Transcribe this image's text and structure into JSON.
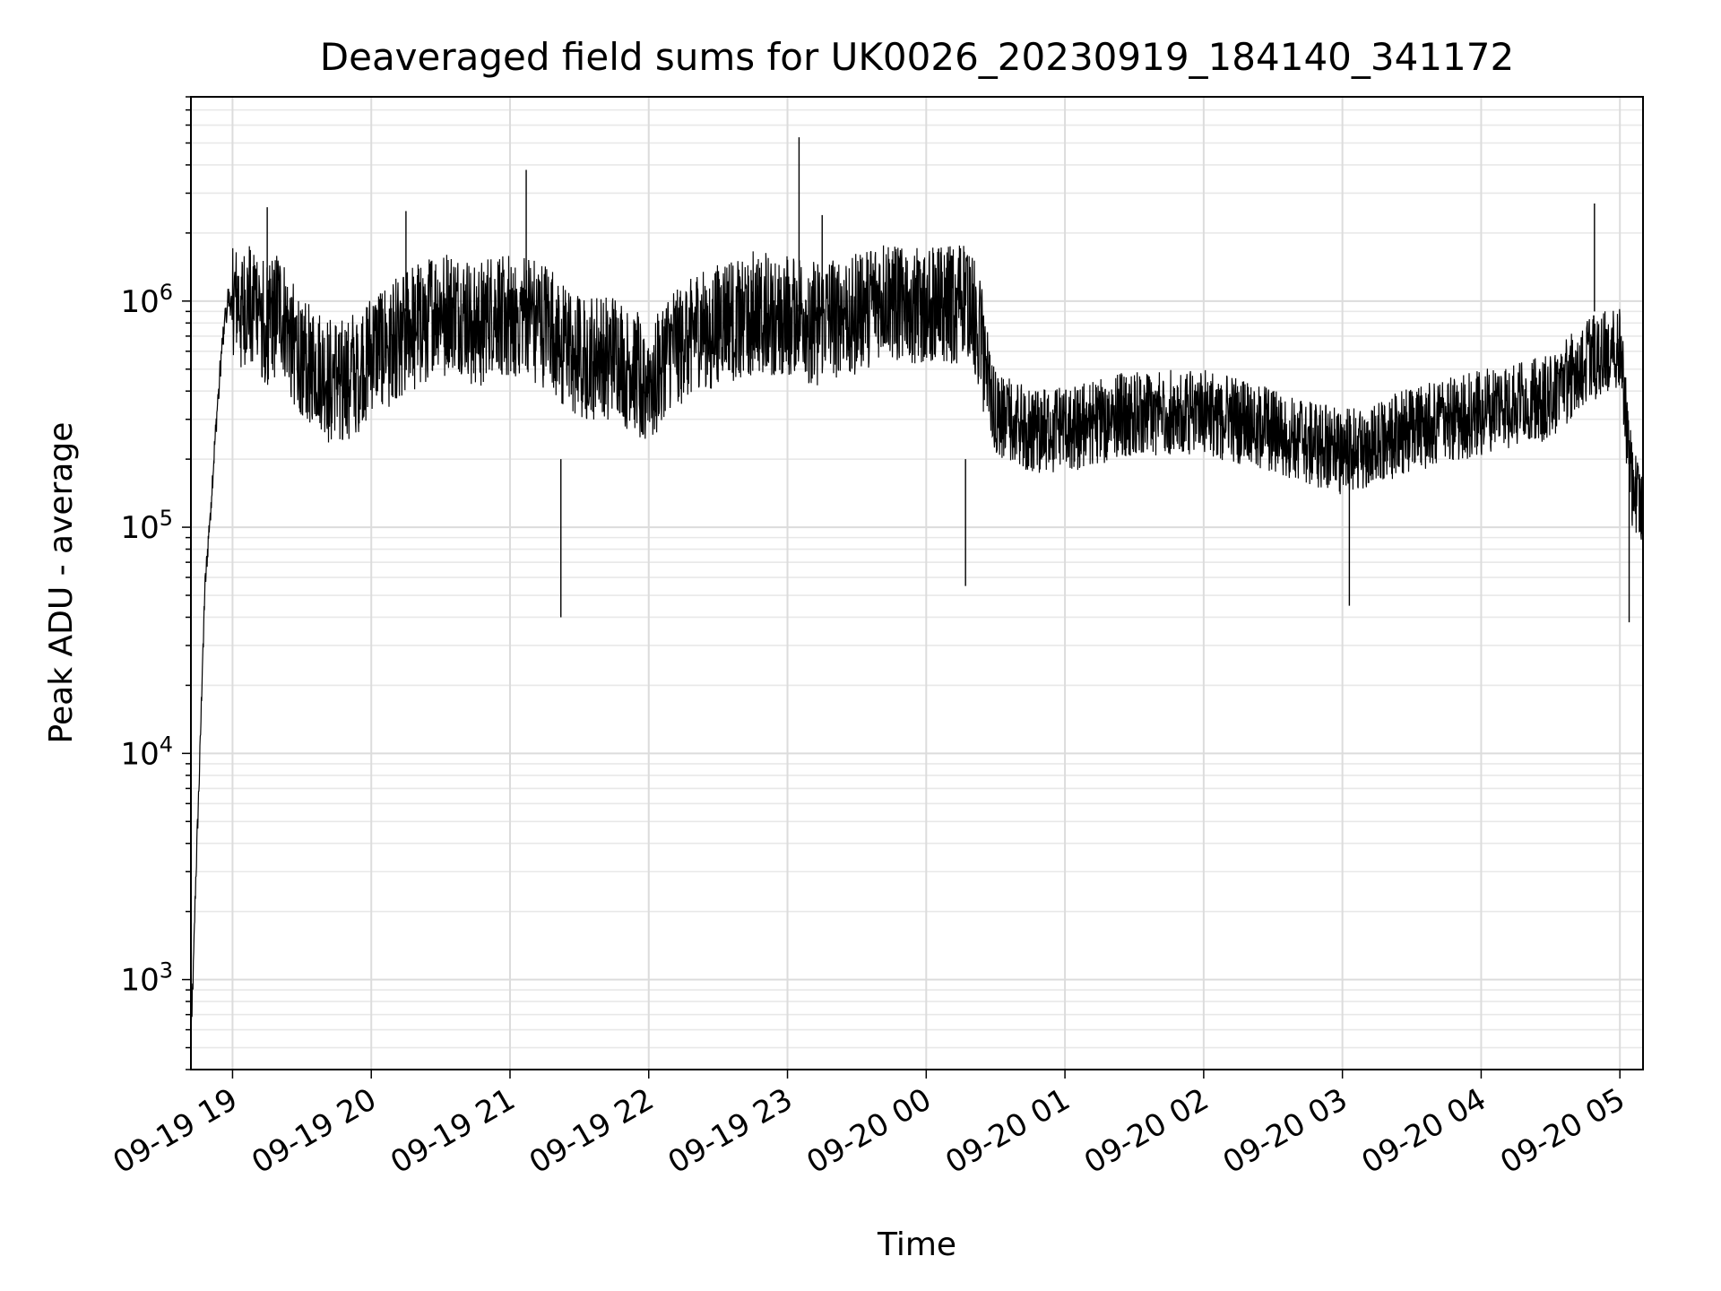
{
  "chart_data": {
    "type": "line",
    "title": "Deaveraged field sums for UK0026_20230919_184140_341172",
    "xlabel": "Time",
    "ylabel": "Peak ADU - average",
    "yscale": "log",
    "grid": true,
    "xlim": [
      "2023-09-19 18:42",
      "2023-09-20 05:10"
    ],
    "ylim": [
      400,
      8000000
    ],
    "xticks": [
      "09-19 19",
      "09-19 20",
      "09-19 21",
      "09-19 22",
      "09-19 23",
      "09-20 00",
      "09-20 01",
      "09-20 02",
      "09-20 03",
      "09-20 04",
      "09-20 05"
    ],
    "yticks": [
      {
        "base": "10",
        "exp": "3",
        "value": 1000
      },
      {
        "base": "10",
        "exp": "4",
        "value": 10000
      },
      {
        "base": "10",
        "exp": "5",
        "value": 100000
      },
      {
        "base": "10",
        "exp": "6",
        "value": 1000000
      }
    ],
    "line_color": "#000000",
    "series": [
      {
        "x": [
          "2023-09-19 18:42",
          "2023-09-19 18:43",
          "2023-09-19 18:44",
          "2023-09-19 18:45",
          "2023-09-19 18:46",
          "2023-09-19 18:47",
          "2023-09-19 18:48",
          "2023-09-19 18:50",
          "2023-09-19 18:52",
          "2023-09-19 18:54",
          "2023-09-19 18:56",
          "2023-09-19 18:58",
          "2023-09-19 19:00",
          "2023-09-19 19:05",
          "2023-09-19 19:10",
          "2023-09-19 19:15",
          "2023-09-19 19:20",
          "2023-09-19 19:25",
          "2023-09-19 19:30",
          "2023-09-19 19:40",
          "2023-09-19 19:50",
          "2023-09-19 20:00",
          "2023-09-19 20:10",
          "2023-09-19 20:20",
          "2023-09-19 20:30",
          "2023-09-19 20:45",
          "2023-09-19 21:00",
          "2023-09-19 21:15",
          "2023-09-19 21:30",
          "2023-09-19 21:45",
          "2023-09-19 22:00",
          "2023-09-19 22:15",
          "2023-09-19 22:30",
          "2023-09-19 22:45",
          "2023-09-19 23:00",
          "2023-09-19 23:15",
          "2023-09-19 23:30",
          "2023-09-19 23:45",
          "2023-09-20 00:00",
          "2023-09-20 00:20",
          "2023-09-20 00:30",
          "2023-09-20 00:45",
          "2023-09-20 01:00",
          "2023-09-20 01:30",
          "2023-09-20 02:00",
          "2023-09-20 02:30",
          "2023-09-20 03:00",
          "2023-09-20 03:30",
          "2023-09-20 04:00",
          "2023-09-20 04:30",
          "2023-09-20 04:45",
          "2023-09-20 05:00",
          "2023-09-20 05:05",
          "2023-09-20 05:10"
        ],
        "y": [
          600,
          1000,
          2500,
          5000,
          10000,
          25000,
          50000,
          100000,
          200000,
          400000,
          700000,
          1000000,
          900000,
          800000,
          900000,
          700000,
          800000,
          600000,
          500000,
          400000,
          400000,
          500000,
          600000,
          700000,
          800000,
          700000,
          800000,
          700000,
          500000,
          500000,
          400000,
          600000,
          700000,
          800000,
          800000,
          700000,
          800000,
          900000,
          900000,
          900000,
          300000,
          250000,
          250000,
          300000,
          300000,
          250000,
          200000,
          250000,
          300000,
          350000,
          500000,
          600000,
          150000,
          100000
        ]
      }
    ],
    "spikes": [
      {
        "x": "2023-09-19 19:15",
        "y": 2600000
      },
      {
        "x": "2023-09-19 20:15",
        "y": 2500000
      },
      {
        "x": "2023-09-19 21:07",
        "y": 3800000
      },
      {
        "x": "2023-09-19 23:05",
        "y": 5300000
      },
      {
        "x": "2023-09-19 23:15",
        "y": 2400000
      },
      {
        "x": "2023-09-20 04:49",
        "y": 2700000
      }
    ],
    "dips": [
      {
        "x": "2023-09-19 21:22",
        "y": 40000
      },
      {
        "x": "2023-09-20 00:17",
        "y": 55000
      },
      {
        "x": "2023-09-20 03:03",
        "y": 45000
      },
      {
        "x": "2023-09-20 05:04",
        "y": 38000
      }
    ]
  }
}
